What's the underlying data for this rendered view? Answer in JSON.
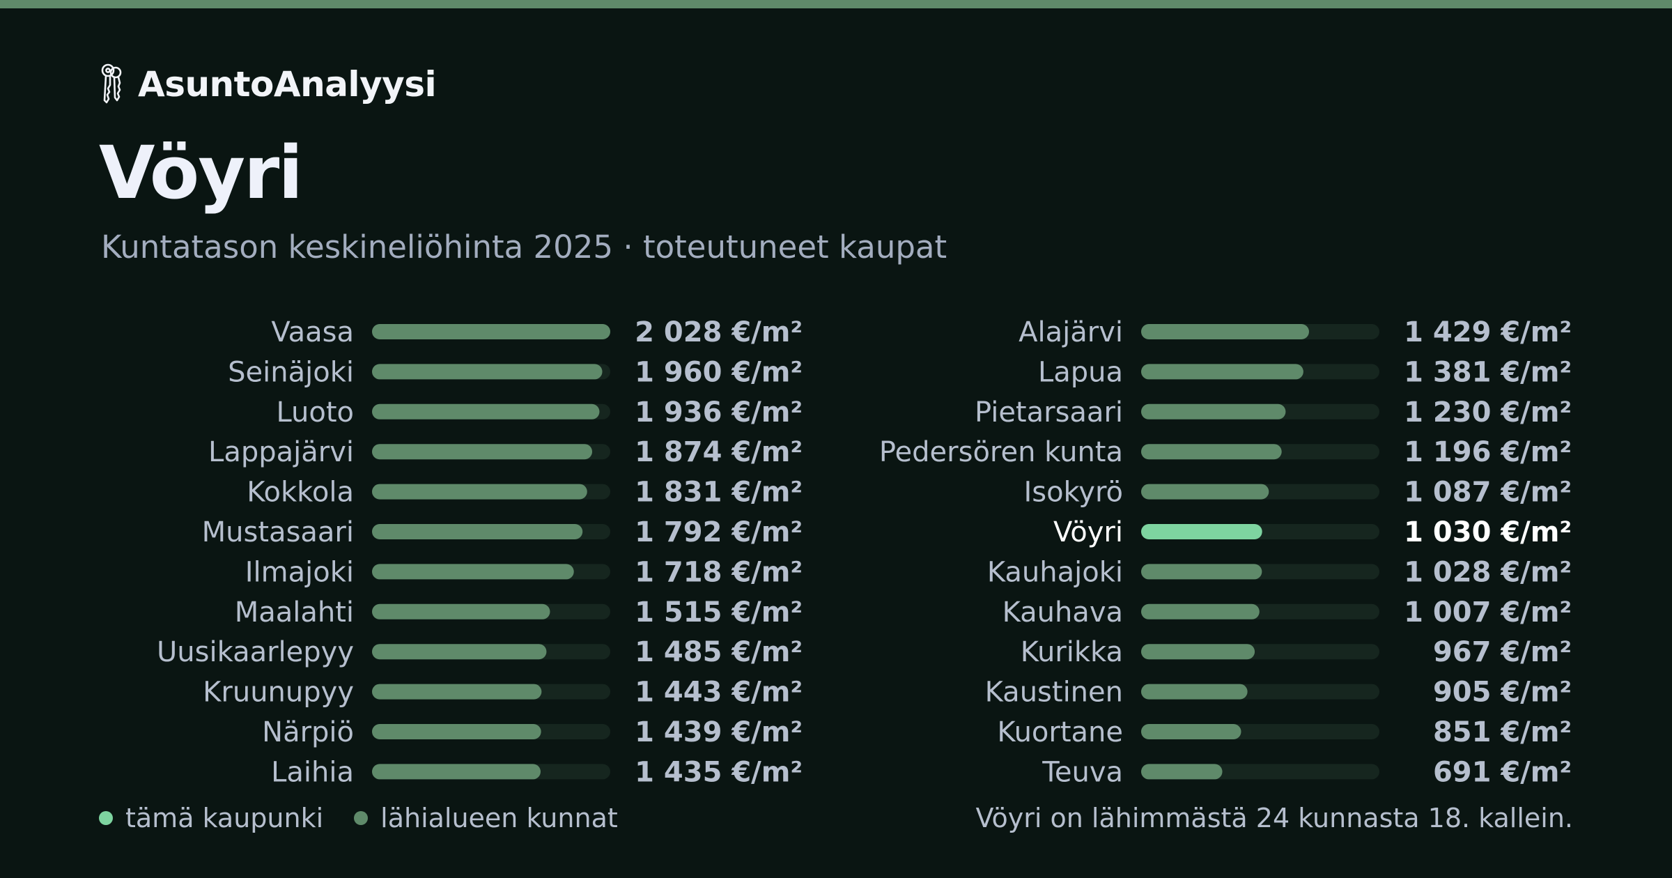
{
  "brand": {
    "name": "AsuntoAnalyysi",
    "icon": "keys-icon"
  },
  "header": {
    "title": "Vöyri",
    "subtitle": "Kuntatason keskineliöhinta 2025 · toteutuneet kaupat"
  },
  "legend": {
    "this_city": "tämä kaupunki",
    "nearby": "lähialueen kunnat"
  },
  "rank_note": "Vöyri on lähimmästä 24 kunnasta 18. kallein.",
  "colors": {
    "background": "#0a1512",
    "top_bar": "#5f8a6a",
    "bar_nearby": "#5f8a6a",
    "bar_highlight": "#7ed4a0",
    "bar_track": "#16261f",
    "label_nearby": "#b6bfce",
    "label_highlight": "#ffffff"
  },
  "chart_data": {
    "type": "bar",
    "orientation": "horizontal",
    "unit": "€/m²",
    "highlight": "Vöyri",
    "xlim": [
      0,
      2028
    ],
    "categories": [
      "Vaasa",
      "Seinäjoki",
      "Luoto",
      "Lappajärvi",
      "Kokkola",
      "Mustasaari",
      "Ilmajoki",
      "Maalahti",
      "Uusikaarlepyy",
      "Kruunupyy",
      "Närpiö",
      "Laihia",
      "Alajärvi",
      "Lapua",
      "Pietarsaari",
      "Pedersören kunta",
      "Isokyrö",
      "Vöyri",
      "Kauhajoki",
      "Kauhava",
      "Kurikka",
      "Kaustinen",
      "Kuortane",
      "Teuva"
    ],
    "values": [
      2028,
      1960,
      1936,
      1874,
      1831,
      1792,
      1718,
      1515,
      1485,
      1443,
      1439,
      1435,
      1429,
      1381,
      1230,
      1196,
      1087,
      1030,
      1028,
      1007,
      967,
      905,
      851,
      691
    ],
    "value_labels": [
      "2 028 €/m²",
      "1 960 €/m²",
      "1 936 €/m²",
      "1 874 €/m²",
      "1 831 €/m²",
      "1 792 €/m²",
      "1 718 €/m²",
      "1 515 €/m²",
      "1 485 €/m²",
      "1 443 €/m²",
      "1 439 €/m²",
      "1 435 €/m²",
      "1 429 €/m²",
      "1 381 €/m²",
      "1 230 €/m²",
      "1 196 €/m²",
      "1 087 €/m²",
      "1 030 €/m²",
      "1 028 €/m²",
      "1 007 €/m²",
      "967 €/m²",
      "905 €/m²",
      "851 €/m²",
      "691 €/m²"
    ]
  }
}
